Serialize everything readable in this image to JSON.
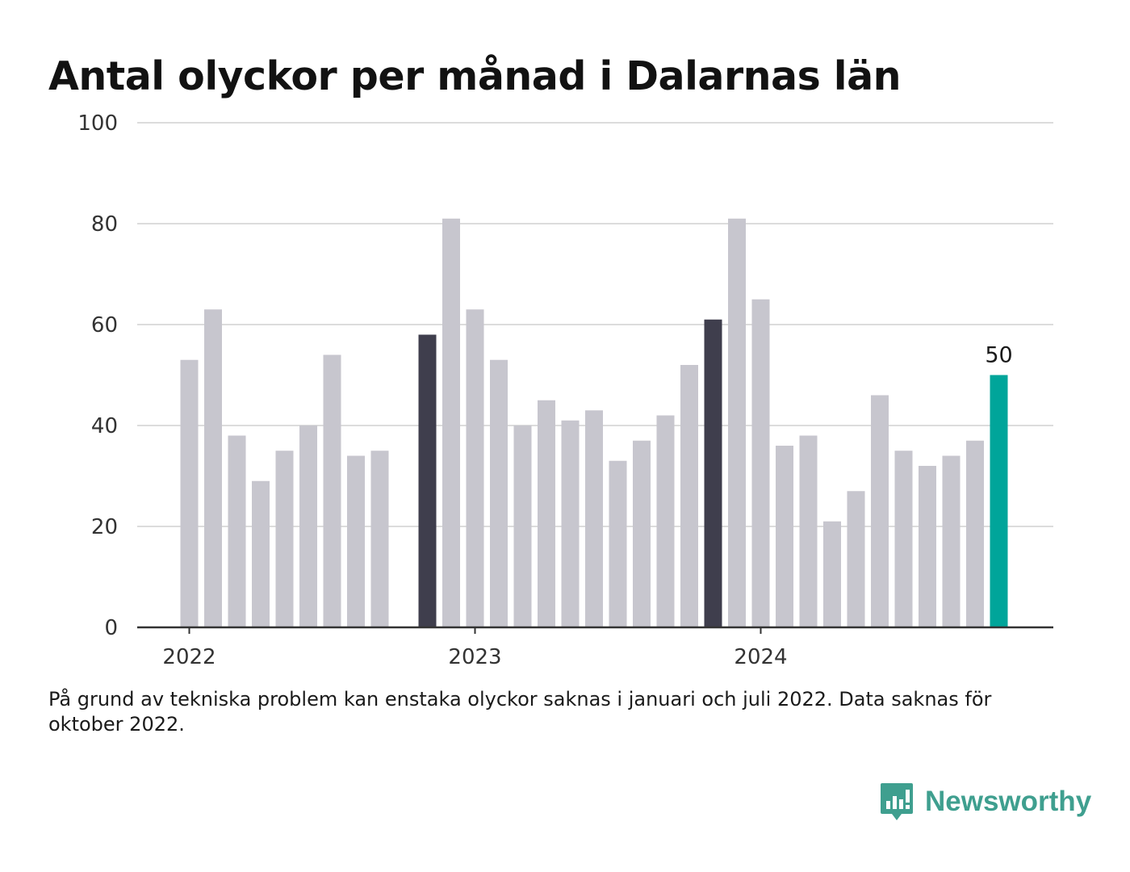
{
  "title": "Antal olyckor per månad i Dalarnas län",
  "note": "På grund av tekniska problem kan enstaka olyckor saknas i januari och juli 2022. Data saknas för oktober 2022.",
  "brand": "Newsworthy",
  "colors": {
    "bar_default": "#c7c6ce",
    "bar_highlight": "#3f3e4d",
    "bar_latest": "#00a59a",
    "grid": "#dcdcdc",
    "axis": "#333333"
  },
  "chart_data": {
    "type": "bar",
    "title": "Antal olyckor per månad i Dalarnas län",
    "xlabel": "",
    "ylabel": "",
    "ylim": [
      0,
      100
    ],
    "yticks": [
      0,
      20,
      40,
      60,
      80,
      100
    ],
    "xtick_labels": [
      {
        "label": "2022",
        "at": "2022-01"
      },
      {
        "label": "2023",
        "at": "2023-01"
      },
      {
        "label": "2024",
        "at": "2024-01"
      }
    ],
    "grid": true,
    "categories": [
      "2022-01",
      "2022-02",
      "2022-03",
      "2022-04",
      "2022-05",
      "2022-06",
      "2022-07",
      "2022-08",
      "2022-09",
      "2022-10",
      "2022-11",
      "2022-12",
      "2023-01",
      "2023-02",
      "2023-03",
      "2023-04",
      "2023-05",
      "2023-06",
      "2023-07",
      "2023-08",
      "2023-09",
      "2023-10",
      "2023-11",
      "2023-12",
      "2024-01",
      "2024-02",
      "2024-03",
      "2024-04",
      "2024-05",
      "2024-06",
      "2024-07",
      "2024-08",
      "2024-09",
      "2024-10",
      "2024-11"
    ],
    "values": [
      53,
      63,
      38,
      29,
      35,
      40,
      54,
      34,
      35,
      null,
      58,
      81,
      63,
      53,
      40,
      45,
      41,
      43,
      33,
      37,
      42,
      52,
      61,
      81,
      65,
      36,
      38,
      21,
      27,
      46,
      35,
      32,
      34,
      37,
      50
    ],
    "highlighted": [
      "2022-11",
      "2023-11"
    ],
    "latest": "2024-11",
    "labeled_value": {
      "category": "2024-11",
      "label": "50"
    }
  }
}
